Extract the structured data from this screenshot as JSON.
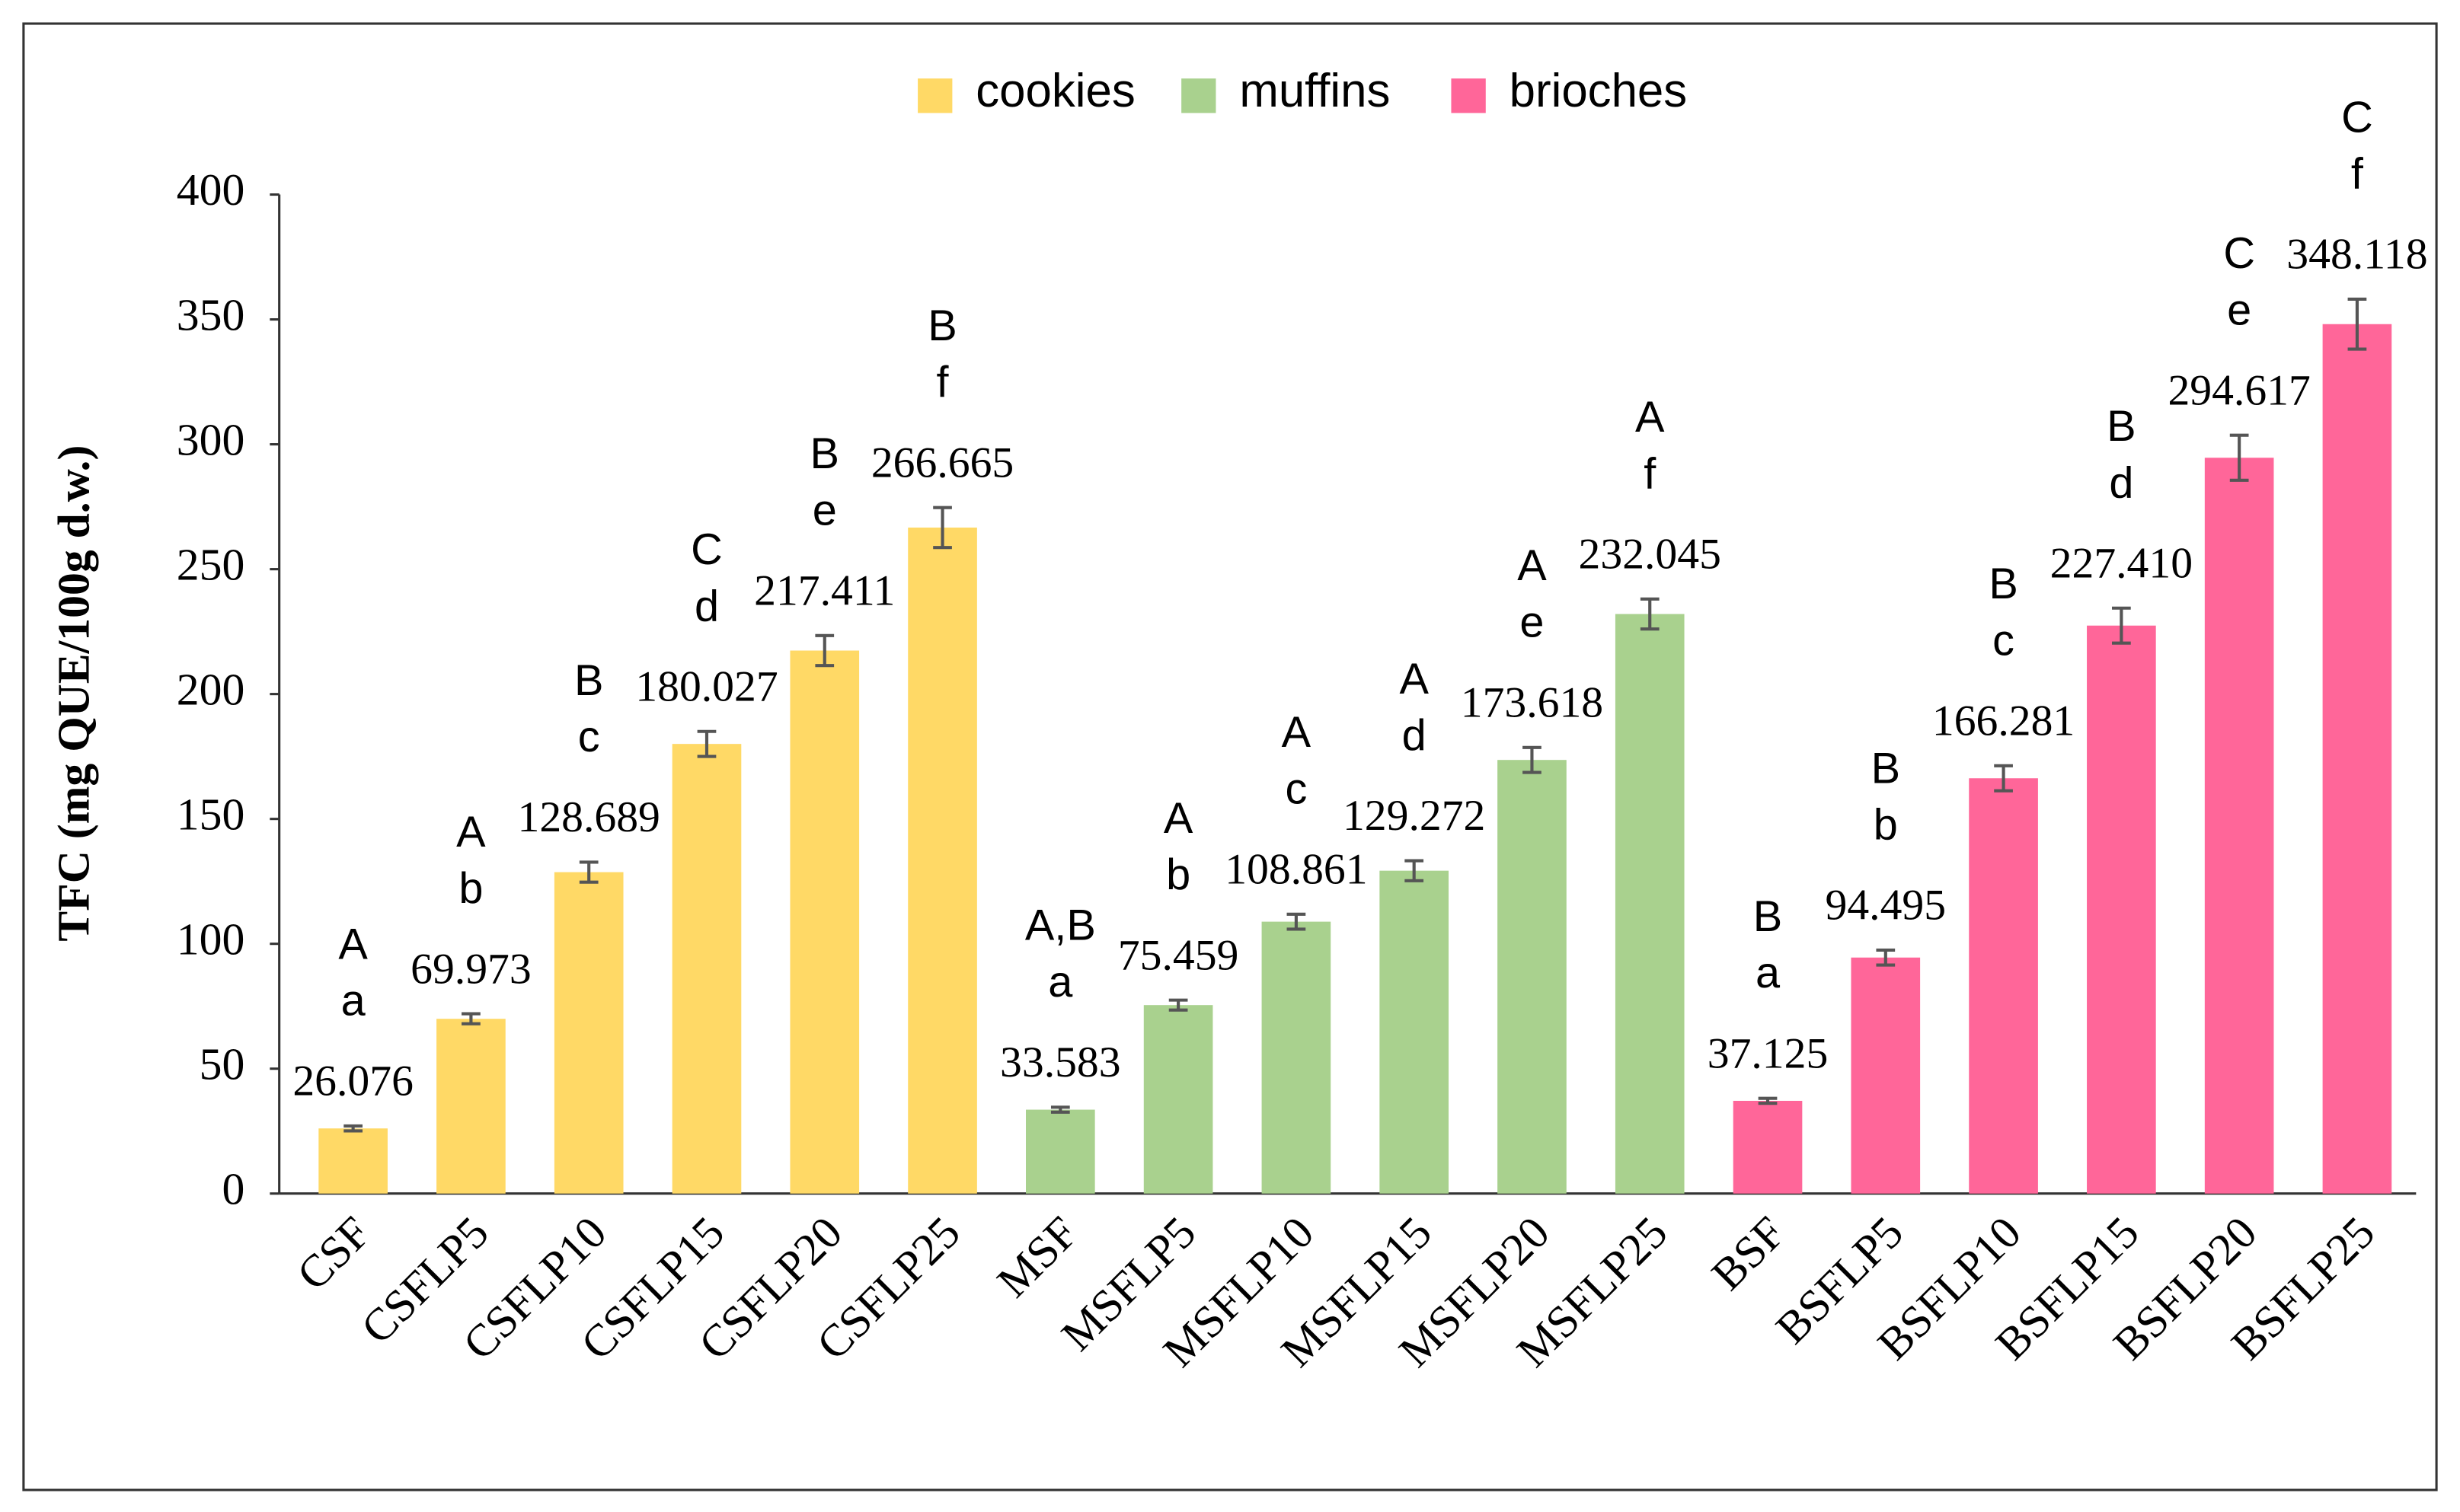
{
  "chart_data": {
    "type": "bar",
    "y_label": "TFC (mg QUE/100g d.w.)",
    "categories": [
      "CSF",
      "CSFLP5",
      "CSFLP10",
      "CSFLP15",
      "CSFLP20",
      "CSFLP25",
      "MSF",
      "MSFLP5",
      "MSFLP10",
      "MSFLP15",
      "MSFLP20",
      "MSFLP25",
      "BSF",
      "BSFLP5",
      "BSFLP10",
      "BSFLP15",
      "BSFLP20",
      "BSFLP25"
    ],
    "series": [
      {
        "name": "cookies",
        "color": "#FFD966",
        "values": [
          26.076,
          69.973,
          128.689,
          180.027,
          217.411,
          266.665,
          null,
          null,
          null,
          null,
          null,
          null,
          null,
          null,
          null,
          null,
          null,
          null
        ],
        "value_labels": [
          "26.076",
          "69.973",
          "128.689",
          "180.027",
          "217.411",
          "266.665",
          null,
          null,
          null,
          null,
          null,
          null,
          null,
          null,
          null,
          null,
          null,
          null
        ],
        "errors": [
          1,
          2,
          4,
          5,
          6,
          8,
          null,
          null,
          null,
          null,
          null,
          null,
          null,
          null,
          null,
          null,
          null,
          null
        ],
        "letters_upper": [
          "A",
          "A",
          "B",
          "C",
          "B",
          "B",
          null,
          null,
          null,
          null,
          null,
          null,
          null,
          null,
          null,
          null,
          null,
          null
        ],
        "letters_lower": [
          "a",
          "b",
          "c",
          "d",
          "e",
          "f",
          null,
          null,
          null,
          null,
          null,
          null,
          null,
          null,
          null,
          null,
          null,
          null
        ]
      },
      {
        "name": "muffins",
        "color": "#A9D18E",
        "values": [
          null,
          null,
          null,
          null,
          null,
          null,
          33.583,
          75.459,
          108.861,
          129.272,
          173.618,
          232.045,
          null,
          null,
          null,
          null,
          null,
          null
        ],
        "value_labels": [
          null,
          null,
          null,
          null,
          null,
          null,
          "33.583",
          "75.459",
          "108.861",
          "129.272",
          "173.618",
          "232.045",
          null,
          null,
          null,
          null,
          null,
          null
        ],
        "errors": [
          null,
          null,
          null,
          null,
          null,
          null,
          1,
          2,
          3,
          4,
          5,
          6,
          null,
          null,
          null,
          null,
          null,
          null
        ],
        "letters_upper": [
          null,
          null,
          null,
          null,
          null,
          null,
          "A,B",
          "A",
          "A",
          "A",
          "A",
          "A",
          null,
          null,
          null,
          null,
          null,
          null
        ],
        "letters_lower": [
          null,
          null,
          null,
          null,
          null,
          null,
          "a",
          "b",
          "c",
          "d",
          "e",
          "f",
          null,
          null,
          null,
          null,
          null,
          null
        ]
      },
      {
        "name": "brioches",
        "color": "#FF6699",
        "values": [
          null,
          null,
          null,
          null,
          null,
          null,
          null,
          null,
          null,
          null,
          null,
          null,
          37.125,
          94.495,
          166.281,
          227.41,
          294.617,
          348.118
        ],
        "value_labels": [
          null,
          null,
          null,
          null,
          null,
          null,
          null,
          null,
          null,
          null,
          null,
          null,
          "37.125",
          "94.495",
          "166.281",
          "227.410",
          "294.617",
          "348.118"
        ],
        "errors": [
          null,
          null,
          null,
          null,
          null,
          null,
          null,
          null,
          null,
          null,
          null,
          null,
          1,
          3,
          5,
          7,
          9,
          10
        ],
        "letters_upper": [
          null,
          null,
          null,
          null,
          null,
          null,
          null,
          null,
          null,
          null,
          null,
          null,
          "B",
          "B",
          "B",
          "B",
          "C",
          "C"
        ],
        "letters_lower": [
          null,
          null,
          null,
          null,
          null,
          null,
          null,
          null,
          null,
          null,
          null,
          null,
          "a",
          "b",
          "c",
          "d",
          "e",
          "f"
        ]
      }
    ],
    "ylim": [
      0,
      400
    ],
    "yticks": [
      0,
      50,
      100,
      150,
      200,
      250,
      300,
      350,
      400
    ],
    "legend": "top",
    "grid": false
  }
}
